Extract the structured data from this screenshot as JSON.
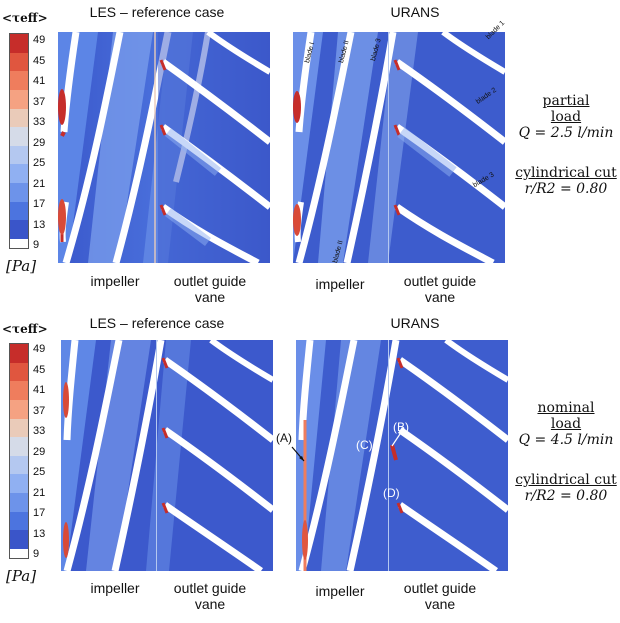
{
  "colorbar": {
    "title": "<τeff>",
    "unit": "[Pa]",
    "ticks": [
      "49",
      "45",
      "41",
      "37",
      "33",
      "29",
      "25",
      "21",
      "17",
      "13",
      "9"
    ],
    "colors": [
      "#c62d2a",
      "#e0563f",
      "#ef7d5d",
      "#f5a282",
      "#eacbb9",
      "#d5dbe8",
      "#b4c8f0",
      "#90b0f2",
      "#6d93ea",
      "#4c74df",
      "#3a55c9"
    ]
  },
  "top": {
    "left_title": "LES – reference case",
    "right_title": "URANS",
    "impeller": "impeller",
    "ogv_line1": "outlet guide",
    "ogv_line2": "vane",
    "side_line1": "partial",
    "side_line2": "load",
    "side_eq": "Q = 2.5 l/min",
    "cut_line": "cylindrical cut",
    "cut_eq": "r/R2 = 0.80",
    "blade_labels": [
      "blade I",
      "blade II",
      "blade 3",
      "blade 1",
      "blade 2",
      "blade 3",
      "blade II"
    ]
  },
  "bottom": {
    "left_title": "LES – reference case",
    "right_title": "URANS",
    "impeller": "impeller",
    "ogv_line1": "outlet guide",
    "ogv_line2": "vane",
    "side_line1": "nominal",
    "side_line2": "load",
    "side_eq": "Q = 4.5 l/min",
    "cut_line": "cylindrical cut",
    "cut_eq": "r/R2 = 0.80",
    "annotations": [
      "(A)",
      "(B)",
      "(C)",
      "(D)"
    ]
  }
}
